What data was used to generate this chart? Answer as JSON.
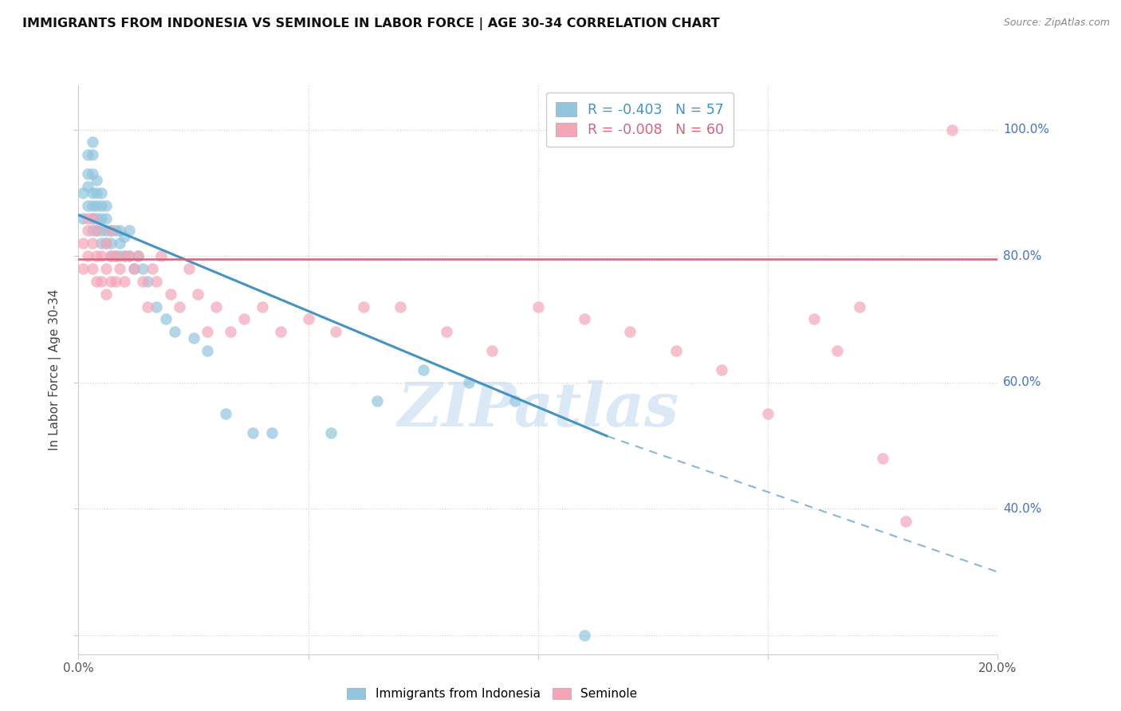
{
  "title": "IMMIGRANTS FROM INDONESIA VS SEMINOLE IN LABOR FORCE | AGE 30-34 CORRELATION CHART",
  "source": "Source: ZipAtlas.com",
  "ylabel": "In Labor Force | Age 30-34",
  "xlim": [
    0.0,
    0.2
  ],
  "ylim": [
    0.17,
    1.07
  ],
  "blue_R": -0.403,
  "blue_N": 57,
  "pink_R": -0.008,
  "pink_N": 60,
  "blue_color": "#92c5de",
  "pink_color": "#f4a6b8",
  "blue_line_color": "#4393c3",
  "pink_line_color": "#d6617b",
  "right_label_color": "#4472c4",
  "watermark": "ZIPatlas",
  "legend_label_blue": "Immigrants from Indonesia",
  "legend_label_pink": "Seminole",
  "blue_line_x0": 0.0,
  "blue_line_y0": 0.865,
  "blue_line_x1": 0.115,
  "blue_line_y1": 0.515,
  "blue_line_dash_x1": 0.2,
  "blue_line_dash_y1": 0.3,
  "pink_line_y": 0.795,
  "grid_yticks": [
    0.2,
    0.4,
    0.6,
    0.8,
    1.0
  ],
  "grid_xticks": [
    0.05,
    0.1,
    0.15,
    0.2
  ],
  "right_labels": {
    "1.00": "100.0%",
    "0.80": "80.0%",
    "0.60": "60.0%",
    "0.40": "40.0%"
  },
  "blue_scatter_x": [
    0.001,
    0.001,
    0.002,
    0.002,
    0.002,
    0.002,
    0.003,
    0.003,
    0.003,
    0.003,
    0.003,
    0.003,
    0.003,
    0.004,
    0.004,
    0.004,
    0.004,
    0.004,
    0.005,
    0.005,
    0.005,
    0.005,
    0.005,
    0.006,
    0.006,
    0.006,
    0.006,
    0.007,
    0.007,
    0.007,
    0.008,
    0.008,
    0.009,
    0.009,
    0.009,
    0.01,
    0.01,
    0.011,
    0.011,
    0.012,
    0.013,
    0.014,
    0.015,
    0.017,
    0.019,
    0.021,
    0.025,
    0.028,
    0.032,
    0.038,
    0.042,
    0.055,
    0.065,
    0.075,
    0.085,
    0.095,
    0.11
  ],
  "blue_scatter_y": [
    0.86,
    0.9,
    0.88,
    0.91,
    0.93,
    0.96,
    0.84,
    0.86,
    0.88,
    0.9,
    0.93,
    0.96,
    0.98,
    0.84,
    0.86,
    0.88,
    0.9,
    0.92,
    0.82,
    0.84,
    0.86,
    0.88,
    0.9,
    0.82,
    0.84,
    0.86,
    0.88,
    0.8,
    0.82,
    0.84,
    0.8,
    0.84,
    0.8,
    0.82,
    0.84,
    0.8,
    0.83,
    0.8,
    0.84,
    0.78,
    0.8,
    0.78,
    0.76,
    0.72,
    0.7,
    0.68,
    0.67,
    0.65,
    0.55,
    0.52,
    0.52,
    0.52,
    0.57,
    0.62,
    0.6,
    0.57,
    0.2
  ],
  "pink_scatter_x": [
    0.001,
    0.001,
    0.002,
    0.002,
    0.002,
    0.003,
    0.003,
    0.003,
    0.004,
    0.004,
    0.004,
    0.005,
    0.005,
    0.006,
    0.006,
    0.006,
    0.007,
    0.007,
    0.007,
    0.008,
    0.008,
    0.009,
    0.01,
    0.01,
    0.011,
    0.012,
    0.013,
    0.014,
    0.015,
    0.016,
    0.017,
    0.018,
    0.02,
    0.022,
    0.024,
    0.026,
    0.028,
    0.03,
    0.033,
    0.036,
    0.04,
    0.044,
    0.05,
    0.056,
    0.062,
    0.07,
    0.08,
    0.09,
    0.1,
    0.11,
    0.12,
    0.13,
    0.14,
    0.15,
    0.16,
    0.165,
    0.17,
    0.175,
    0.18,
    0.19
  ],
  "pink_scatter_y": [
    0.78,
    0.82,
    0.8,
    0.84,
    0.86,
    0.78,
    0.82,
    0.86,
    0.76,
    0.8,
    0.84,
    0.76,
    0.8,
    0.74,
    0.78,
    0.82,
    0.76,
    0.8,
    0.84,
    0.76,
    0.8,
    0.78,
    0.76,
    0.8,
    0.8,
    0.78,
    0.8,
    0.76,
    0.72,
    0.78,
    0.76,
    0.8,
    0.74,
    0.72,
    0.78,
    0.74,
    0.68,
    0.72,
    0.68,
    0.7,
    0.72,
    0.68,
    0.7,
    0.68,
    0.72,
    0.72,
    0.68,
    0.65,
    0.72,
    0.7,
    0.68,
    0.65,
    0.62,
    0.55,
    0.7,
    0.65,
    0.72,
    0.48,
    0.38,
    1.0
  ]
}
